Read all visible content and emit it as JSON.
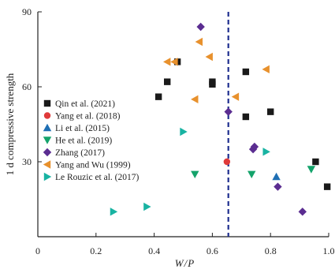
{
  "chart_data": {
    "type": "scatter",
    "xlabel": "W/P",
    "ylabel": "1 d compressive strength",
    "xlim": [
      0,
      1.0
    ],
    "ylim": [
      0,
      90
    ],
    "x_ticks": [
      0,
      0.2,
      0.4,
      0.6,
      0.8,
      1.0
    ],
    "x_tick_labels": [
      "0",
      "0.2",
      "0.4",
      "0.6",
      "0.8",
      "1.0"
    ],
    "y_ticks": [
      30,
      60,
      90
    ],
    "y_tick_labels": [
      "30",
      "60",
      "90"
    ],
    "grid": false,
    "legend_position": "left",
    "reference_line": {
      "style": "dashed",
      "orientation": "vertical",
      "x": 0.655,
      "color": "#1f2f8f"
    },
    "series": [
      {
        "name": "Qin et al. (2021)",
        "marker": "square",
        "color": "#1a1a1a",
        "points": [
          [
            0.415,
            56
          ],
          [
            0.445,
            62
          ],
          [
            0.48,
            70
          ],
          [
            0.6,
            61
          ],
          [
            0.6,
            62
          ],
          [
            0.715,
            66
          ],
          [
            0.715,
            48
          ],
          [
            0.8,
            50
          ],
          [
            0.955,
            30
          ],
          [
            0.995,
            20
          ]
        ]
      },
      {
        "name": "Yang et al. (2018)",
        "marker": "circle",
        "color": "#e03a3a",
        "points": [
          [
            0.65,
            30
          ]
        ]
      },
      {
        "name": "Li et al. (2015)",
        "marker": "triangle-up",
        "color": "#1f6fb4",
        "points": [
          [
            0.82,
            24
          ]
        ]
      },
      {
        "name": "He et al. (2019)",
        "marker": "triangle-down",
        "color": "#14a36b",
        "points": [
          [
            0.54,
            25
          ],
          [
            0.735,
            25
          ],
          [
            0.94,
            27
          ]
        ]
      },
      {
        "name": "Zhang (2017)",
        "marker": "diamond",
        "color": "#5b2d91",
        "points": [
          [
            0.56,
            84
          ],
          [
            0.655,
            50
          ],
          [
            0.74,
            35
          ],
          [
            0.745,
            36
          ],
          [
            0.825,
            20
          ],
          [
            0.91,
            10
          ]
        ]
      },
      {
        "name": "Yang and Wu (1999)",
        "marker": "triangle-left",
        "color": "#e8912d",
        "points": [
          [
            0.445,
            70
          ],
          [
            0.47,
            70
          ],
          [
            0.555,
            78
          ],
          [
            0.54,
            55
          ],
          [
            0.59,
            72
          ],
          [
            0.68,
            56
          ],
          [
            0.785,
            67
          ]
        ]
      },
      {
        "name": "Le Rouzic et al. (2017)",
        "marker": "triangle-right",
        "color": "#18b3a2",
        "points": [
          [
            0.26,
            10
          ],
          [
            0.375,
            12
          ],
          [
            0.5,
            42
          ],
          [
            0.785,
            34
          ]
        ]
      }
    ]
  }
}
